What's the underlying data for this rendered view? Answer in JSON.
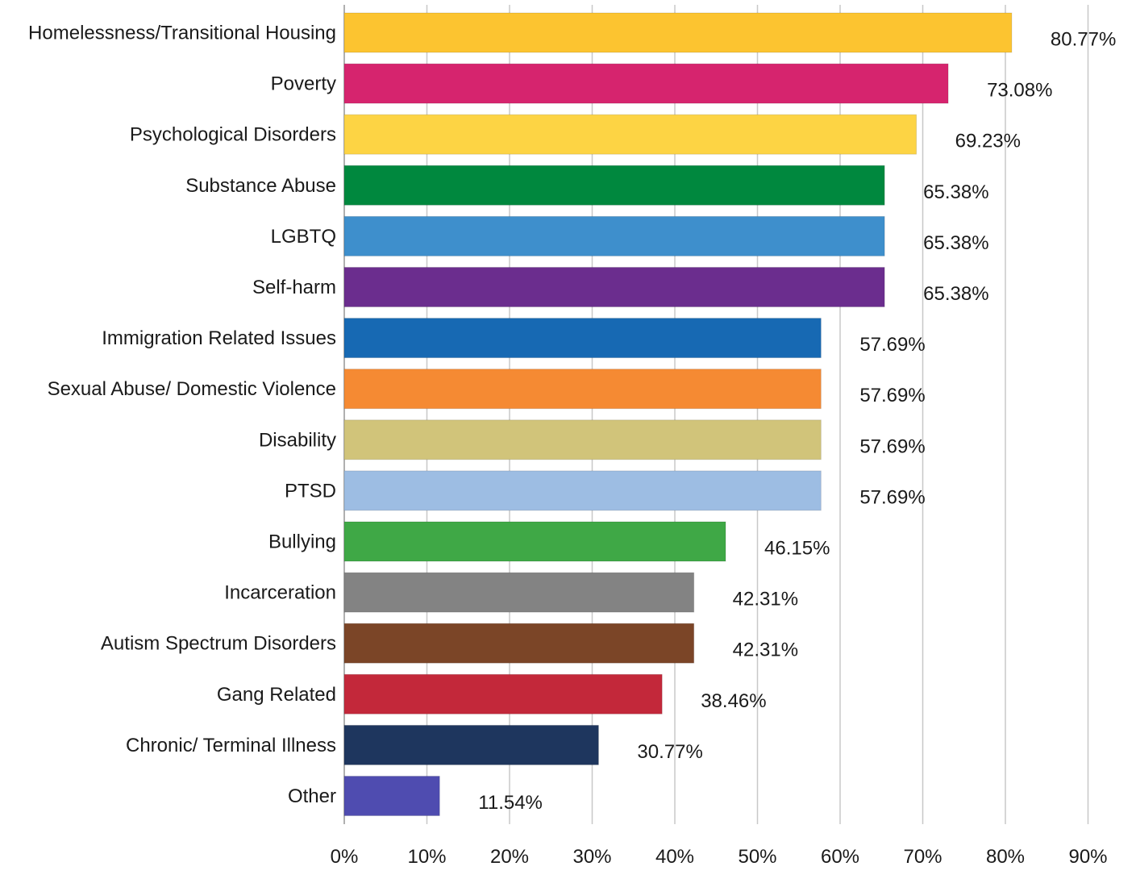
{
  "chart_data": {
    "type": "bar",
    "orientation": "horizontal",
    "categories": [
      "Homelessness/Transitional Housing",
      "Poverty",
      "Psychological Disorders",
      "Substance Abuse",
      "LGBTQ",
      "Self-harm",
      "Immigration Related Issues",
      "Sexual Abuse/ Domestic Violence",
      "Disability",
      "PTSD",
      "Bullying",
      "Incarceration",
      "Autism Spectrum Disorders",
      "Gang Related",
      "Chronic/ Terminal Illness",
      "Other"
    ],
    "values": [
      80.77,
      73.08,
      69.23,
      65.38,
      65.38,
      65.38,
      57.69,
      57.69,
      57.69,
      57.69,
      46.15,
      42.31,
      42.31,
      38.46,
      30.77,
      11.54
    ],
    "value_labels": [
      "80.77%",
      "73.08%",
      "69.23%",
      "65.38%",
      "65.38%",
      "65.38%",
      "57.69%",
      "57.69%",
      "57.69%",
      "57.69%",
      "46.15%",
      "42.31%",
      "42.31%",
      "38.46%",
      "30.77%",
      "11.54%"
    ],
    "colors": [
      "#FCC430",
      "#D6246E",
      "#FDD444",
      "#00883E",
      "#3E8FCC",
      "#6B2D8E",
      "#1769B3",
      "#F58A33",
      "#D1C47A",
      "#9DBDE3",
      "#3FA846",
      "#838383",
      "#7B4527",
      "#C3283A",
      "#1E365E",
      "#4F4CB0"
    ],
    "x_ticks": [
      "0%",
      "10%",
      "20%",
      "30%",
      "40%",
      "50%",
      "60%",
      "70%",
      "80%",
      "90%"
    ],
    "x_tick_values": [
      0,
      10,
      20,
      30,
      40,
      50,
      60,
      70,
      80,
      90
    ],
    "xlim": [
      0,
      90
    ],
    "grid": "vertical",
    "legend": "none",
    "title": "",
    "xlabel": "",
    "ylabel": ""
  }
}
